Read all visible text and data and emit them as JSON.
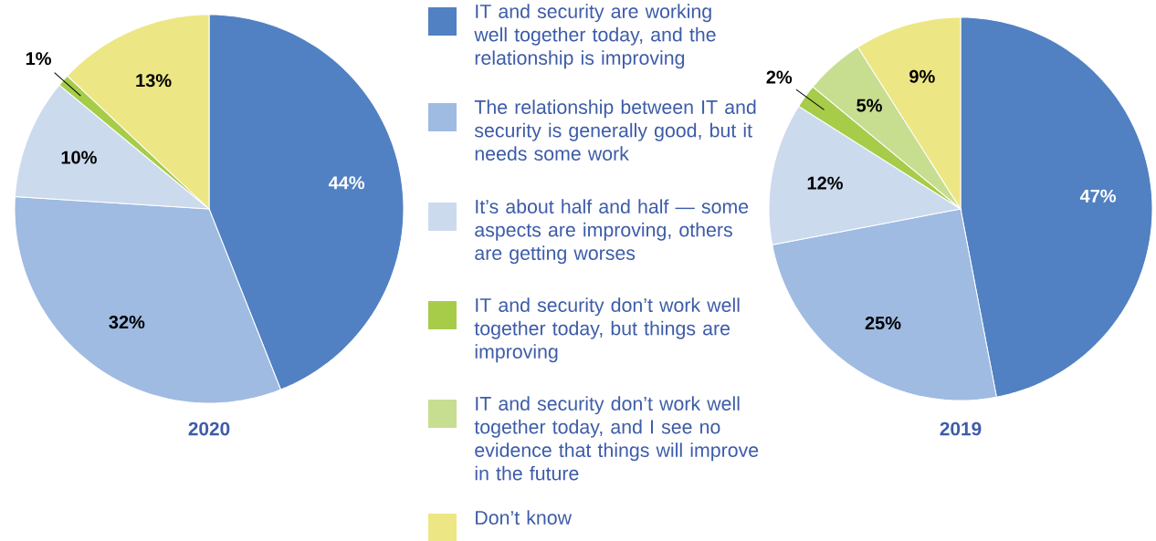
{
  "chart_data": [
    {
      "type": "pie",
      "title": "2020",
      "legend": "right",
      "categories": [
        "IT and security are working well together today, and the relationship is improving",
        "The relationship between IT and security is generally good, but it needs some work",
        "It’s about half and half — some aspects are improving, others are getting worses",
        "IT and security don’t work well together today, but things are improving",
        "IT and security don’t work well together today, and I see no evidence that things will improve in the future",
        "Don’t know"
      ],
      "values": [
        44,
        32,
        10,
        1,
        0,
        13
      ],
      "value_labels": [
        "44%",
        "32%",
        "10%",
        "1%",
        null,
        "13%"
      ],
      "colors": [
        "#5181c2",
        "#9fbbe2",
        "#ccdaee",
        "#a6cc4a",
        "#c7de91",
        "#ede684"
      ]
    },
    {
      "type": "pie",
      "title": "2019",
      "categories": [
        null,
        null,
        null,
        null,
        null,
        null
      ],
      "values": [
        47,
        25,
        12,
        2,
        5,
        9
      ],
      "value_labels": [
        "47%",
        "25%",
        "12%",
        "2%",
        "5%",
        "9%"
      ],
      "colors": [
        "#5181c2",
        "#9fbbe2",
        "#ccdaee",
        "#a6cc4a",
        "#c7de91",
        "#ede684"
      ]
    }
  ]
}
